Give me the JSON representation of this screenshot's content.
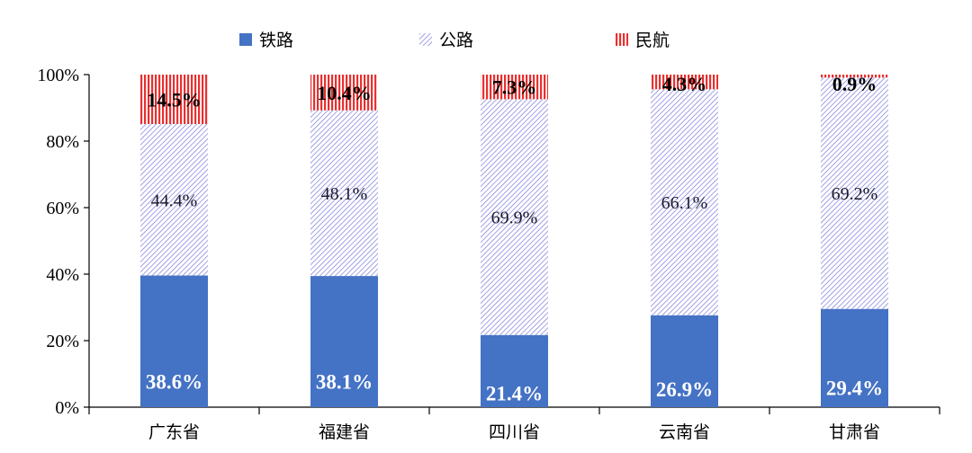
{
  "chart_data": {
    "type": "bar",
    "stacked": true,
    "percent_stacked": true,
    "categories": [
      "广东省",
      "福建省",
      "四川省",
      "云南省",
      "甘肃省"
    ],
    "series": [
      {
        "name": "铁路",
        "values": [
          38.6,
          38.1,
          21.4,
          26.9,
          29.4
        ],
        "labels": [
          "38.6%",
          "38.1%",
          "21.4%",
          "26.9%",
          "29.4%"
        ],
        "color": "#4472c4",
        "pattern": "solid"
      },
      {
        "name": "公路",
        "values": [
          44.4,
          48.1,
          69.9,
          66.1,
          69.2
        ],
        "labels": [
          "44.4%",
          "48.1%",
          "69.9%",
          "66.1%",
          "69.2%"
        ],
        "color": "#6a6ad8",
        "pattern": "diagonal-hatch"
      },
      {
        "name": "民航",
        "values": [
          14.5,
          10.4,
          7.3,
          4.3,
          0.9
        ],
        "labels": [
          "14.5%",
          "10.4%",
          "7.3%",
          "4.3%",
          "0.9%"
        ],
        "color": "#e8302f",
        "pattern": "vertical-stripes"
      }
    ],
    "yticks": [
      "0%",
      "20%",
      "40%",
      "60%",
      "80%",
      "100%"
    ],
    "ylim": [
      0,
      100
    ],
    "legend_position": "top",
    "grid": false
  }
}
